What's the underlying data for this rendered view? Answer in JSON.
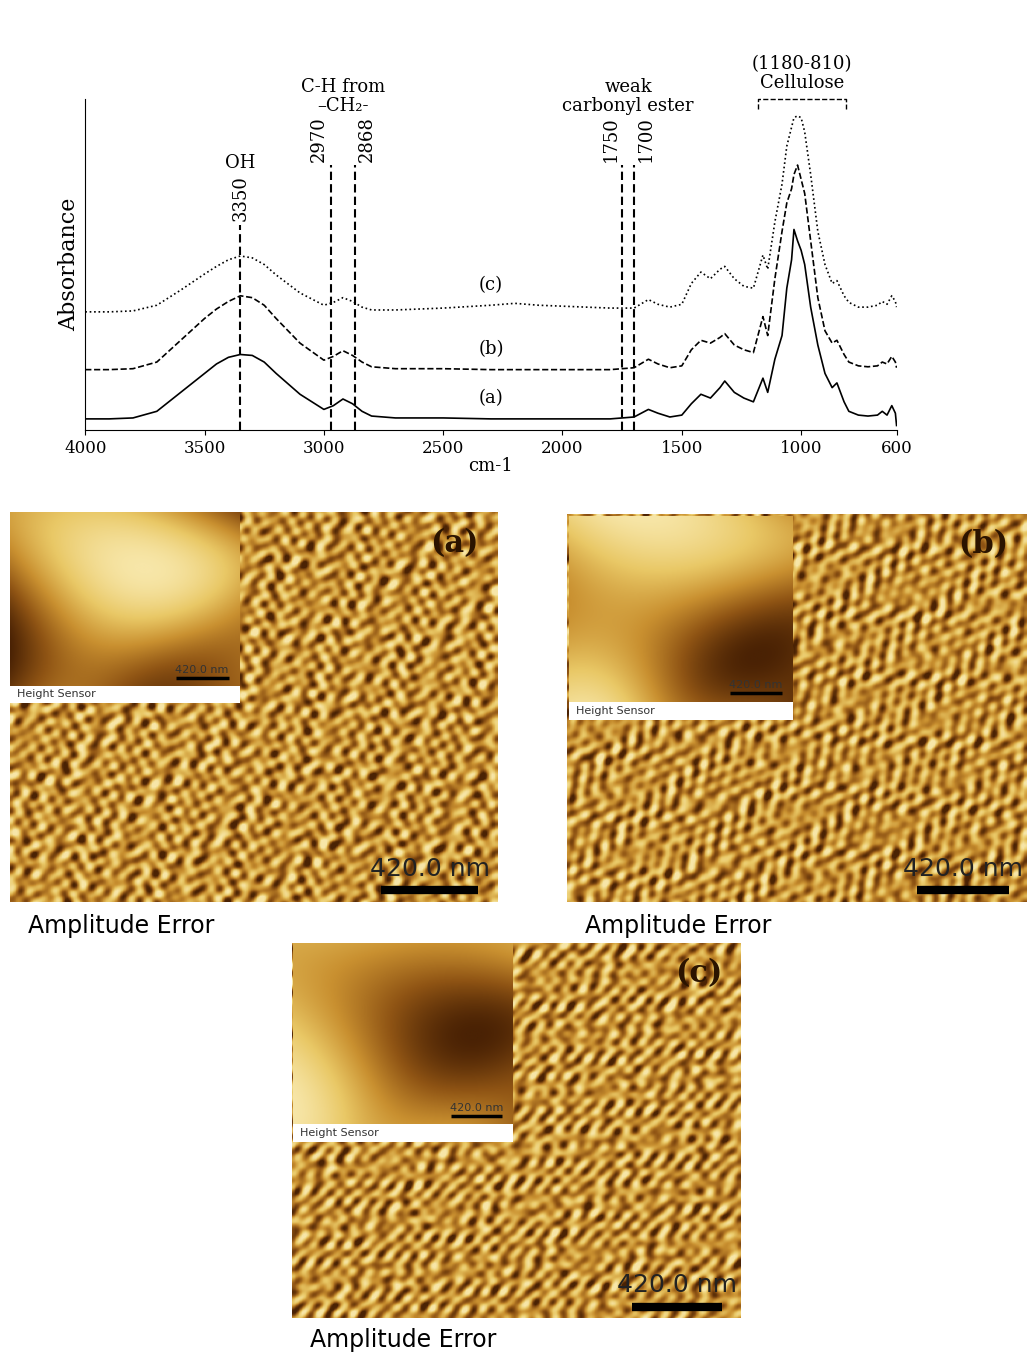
{
  "chart_data": {
    "type": "line",
    "x_label": "cm-1",
    "y_label": "Absorbance",
    "x": [
      4000,
      3900,
      3800,
      3700,
      3600,
      3500,
      3450,
      3400,
      3350,
      3300,
      3250,
      3200,
      3100,
      3000,
      2960,
      2920,
      2880,
      2840,
      2800,
      2700,
      2500,
      2300,
      2200,
      2100,
      2000,
      1900,
      1800,
      1700,
      1640,
      1600,
      1550,
      1500,
      1460,
      1420,
      1380,
      1340,
      1320,
      1280,
      1240,
      1200,
      1160,
      1140,
      1110,
      1080,
      1060,
      1040,
      1030,
      1015,
      1000,
      985,
      960,
      930,
      900,
      870,
      850,
      820,
      800,
      760,
      720,
      680,
      660,
      640,
      620,
      605,
      600
    ],
    "series": [
      {
        "name": "(a)",
        "color": "#000000",
        "line_style": "solid",
        "values": [
          0.12,
          0.12,
          0.13,
          0.2,
          0.4,
          0.6,
          0.7,
          0.77,
          0.8,
          0.79,
          0.72,
          0.6,
          0.38,
          0.22,
          0.26,
          0.33,
          0.28,
          0.2,
          0.15,
          0.13,
          0.13,
          0.12,
          0.12,
          0.12,
          0.12,
          0.12,
          0.12,
          0.14,
          0.22,
          0.18,
          0.14,
          0.16,
          0.28,
          0.38,
          0.34,
          0.45,
          0.52,
          0.4,
          0.34,
          0.3,
          0.55,
          0.4,
          0.75,
          1.0,
          1.5,
          1.8,
          2.12,
          2.0,
          1.9,
          1.75,
          1.3,
          0.9,
          0.6,
          0.45,
          0.5,
          0.3,
          0.2,
          0.16,
          0.15,
          0.16,
          0.2,
          0.16,
          0.26,
          0.18,
          0.05
        ]
      },
      {
        "name": "(b)",
        "color": "#000000",
        "line_style": "dashed",
        "values": [
          0.64,
          0.64,
          0.65,
          0.72,
          0.95,
          1.18,
          1.28,
          1.36,
          1.42,
          1.4,
          1.32,
          1.18,
          0.92,
          0.74,
          0.78,
          0.84,
          0.79,
          0.72,
          0.67,
          0.65,
          0.65,
          0.64,
          0.64,
          0.64,
          0.64,
          0.64,
          0.64,
          0.66,
          0.75,
          0.7,
          0.66,
          0.68,
          0.85,
          0.95,
          0.92,
          0.98,
          1.02,
          0.9,
          0.85,
          0.82,
          1.2,
          1.0,
          1.6,
          2.1,
          2.4,
          2.55,
          2.7,
          2.8,
          2.65,
          2.5,
          2.0,
          1.4,
          1.05,
          0.92,
          0.95,
          0.8,
          0.72,
          0.68,
          0.67,
          0.68,
          0.72,
          0.7,
          0.78,
          0.72,
          0.66
        ]
      },
      {
        "name": "(c)",
        "color": "#000000",
        "line_style": "dotted",
        "values": [
          1.25,
          1.25,
          1.26,
          1.32,
          1.48,
          1.65,
          1.73,
          1.8,
          1.84,
          1.82,
          1.75,
          1.64,
          1.45,
          1.32,
          1.35,
          1.4,
          1.36,
          1.3,
          1.27,
          1.27,
          1.29,
          1.32,
          1.34,
          1.32,
          1.31,
          1.3,
          1.29,
          1.29,
          1.38,
          1.33,
          1.3,
          1.33,
          1.55,
          1.67,
          1.6,
          1.7,
          1.73,
          1.6,
          1.52,
          1.5,
          1.85,
          1.7,
          2.2,
          2.6,
          3.0,
          3.2,
          3.3,
          3.32,
          3.3,
          3.15,
          2.7,
          2.1,
          1.75,
          1.55,
          1.58,
          1.42,
          1.35,
          1.3,
          1.3,
          1.32,
          1.36,
          1.33,
          1.42,
          1.36,
          1.3
        ]
      }
    ],
    "xlim": [
      4000,
      600
    ],
    "xticks": [
      4000,
      3500,
      3000,
      2500,
      2000,
      1500,
      1000,
      600
    ],
    "ylim": [
      0,
      3.5
    ],
    "yticks": [],
    "tick_labels": "x",
    "annotations": [
      {
        "text": "OH",
        "lines": [
          3350
        ]
      },
      {
        "text": "C-H from\n–CH₂-",
        "lines": [
          2970,
          2868
        ]
      },
      {
        "text": "weak\ncarbonyl ester",
        "lines": [
          1750,
          1700
        ]
      }
    ],
    "bracket": {
      "text": "(1180-810)\nCellulose",
      "range": [
        1180,
        810
      ]
    }
  },
  "afm_images": [
    {
      "label": "(a)",
      "caption": "Amplitude Error",
      "inset_label": "Height Sensor",
      "scale_bar": "420.0 nm",
      "inset_scale_bar": "420.0 nm"
    },
    {
      "label": "(b)",
      "caption": "Amplitude Error",
      "inset_label": "Height Sensor",
      "scale_bar": "420.0 nm",
      "inset_scale_bar": "420.0 nm"
    },
    {
      "label": "(c)",
      "caption": "Amplitude Error",
      "inset_label": "Height Sensor",
      "scale_bar": "420.0 nm",
      "inset_scale_bar": "420.0 nm"
    }
  ]
}
